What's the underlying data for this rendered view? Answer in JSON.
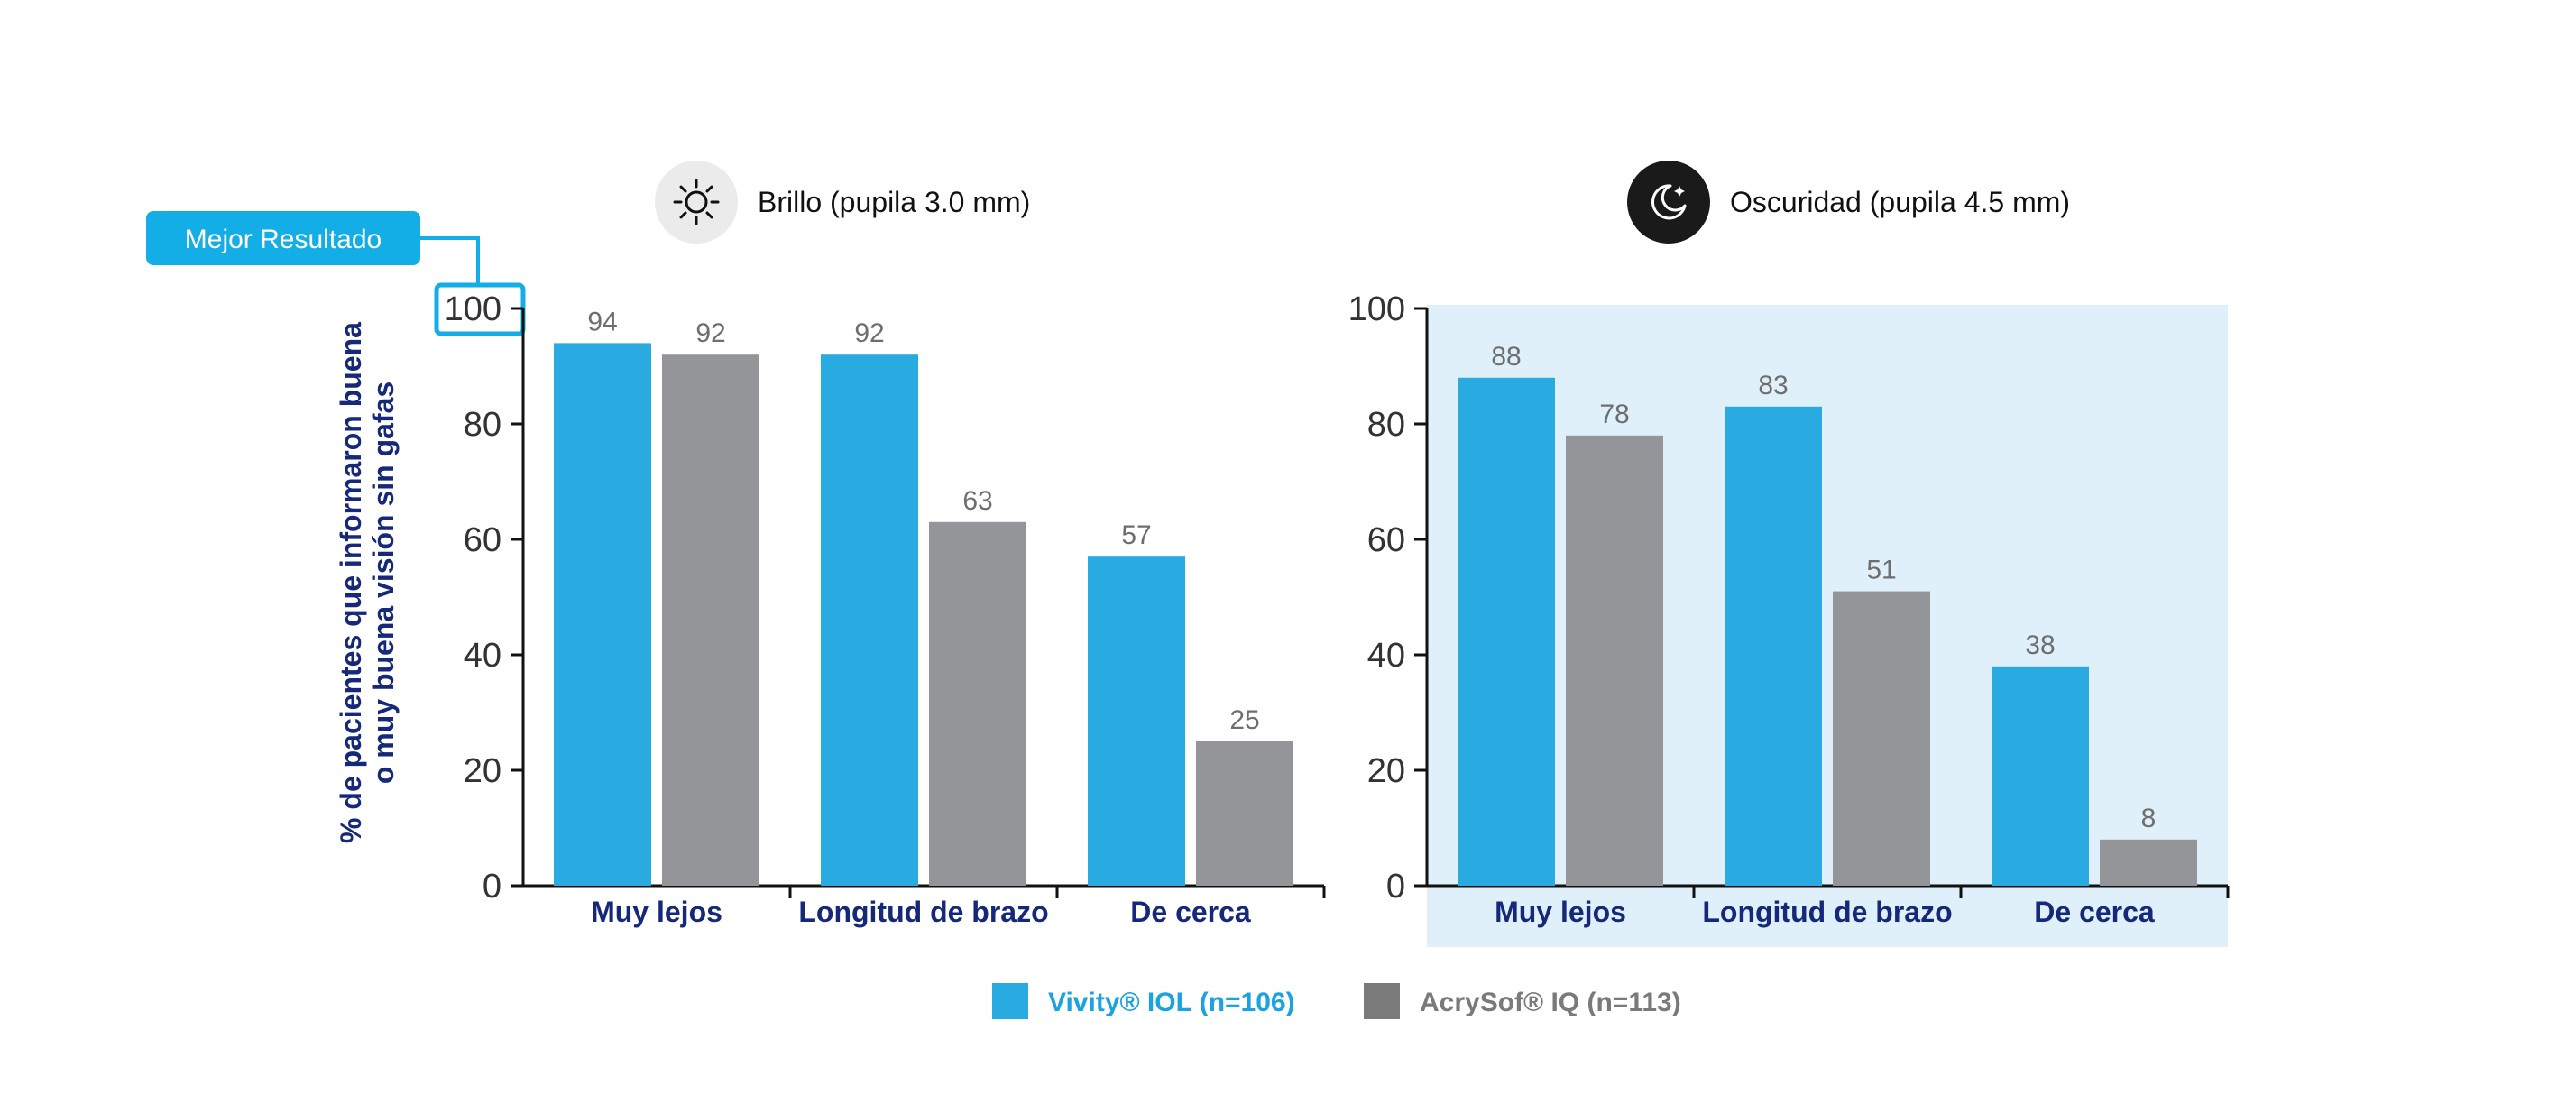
{
  "callout": {
    "label": "Mejor Resultado",
    "target_tick": "100"
  },
  "y_axis_label": [
    "% de pacientes que informaron buena",
    "o muy buena visión sin gafas"
  ],
  "legend": [
    {
      "name": "Vivity® IOL (n=106)",
      "color": "#29abe2",
      "text_color": "#1aa3e0"
    },
    {
      "name": "AcrySof® IQ (n=113)",
      "color": "#7a7a7a",
      "text_color": "#7a7a7a"
    }
  ],
  "colors": {
    "vivity": "#29abe2",
    "acrysof": "#939598",
    "dark_panel_bg": "#dff0fa",
    "callout": "#14aee6",
    "category_text": "#15287a",
    "sun_circle": "#ebebeb",
    "moon_circle": "#1a1a1a"
  },
  "chart_data": [
    {
      "type": "bar",
      "condition": "Brillo (pupila 3.0 mm)",
      "icon": "sun-icon",
      "categories": [
        "Muy lejos",
        "Longitud de brazo",
        "De cerca"
      ],
      "series": [
        {
          "name": "Vivity® IOL (n=106)",
          "values": [
            94,
            92,
            57
          ]
        },
        {
          "name": "AcrySof® IQ (n=113)",
          "values": [
            92,
            63,
            25
          ]
        }
      ],
      "ylim": [
        0,
        100
      ],
      "yticks": [
        0,
        20,
        40,
        60,
        80,
        100
      ],
      "highlighted": false
    },
    {
      "type": "bar",
      "condition": "Oscuridad (pupila 4.5 mm)",
      "icon": "moon-icon",
      "categories": [
        "Muy lejos",
        "Longitud de brazo",
        "De cerca"
      ],
      "series": [
        {
          "name": "Vivity® IOL (n=106)",
          "values": [
            88,
            83,
            38
          ]
        },
        {
          "name": "AcrySof® IQ (n=113)",
          "values": [
            78,
            51,
            8
          ]
        }
      ],
      "ylim": [
        0,
        100
      ],
      "yticks": [
        0,
        20,
        40,
        60,
        80,
        100
      ],
      "highlighted": true
    }
  ]
}
